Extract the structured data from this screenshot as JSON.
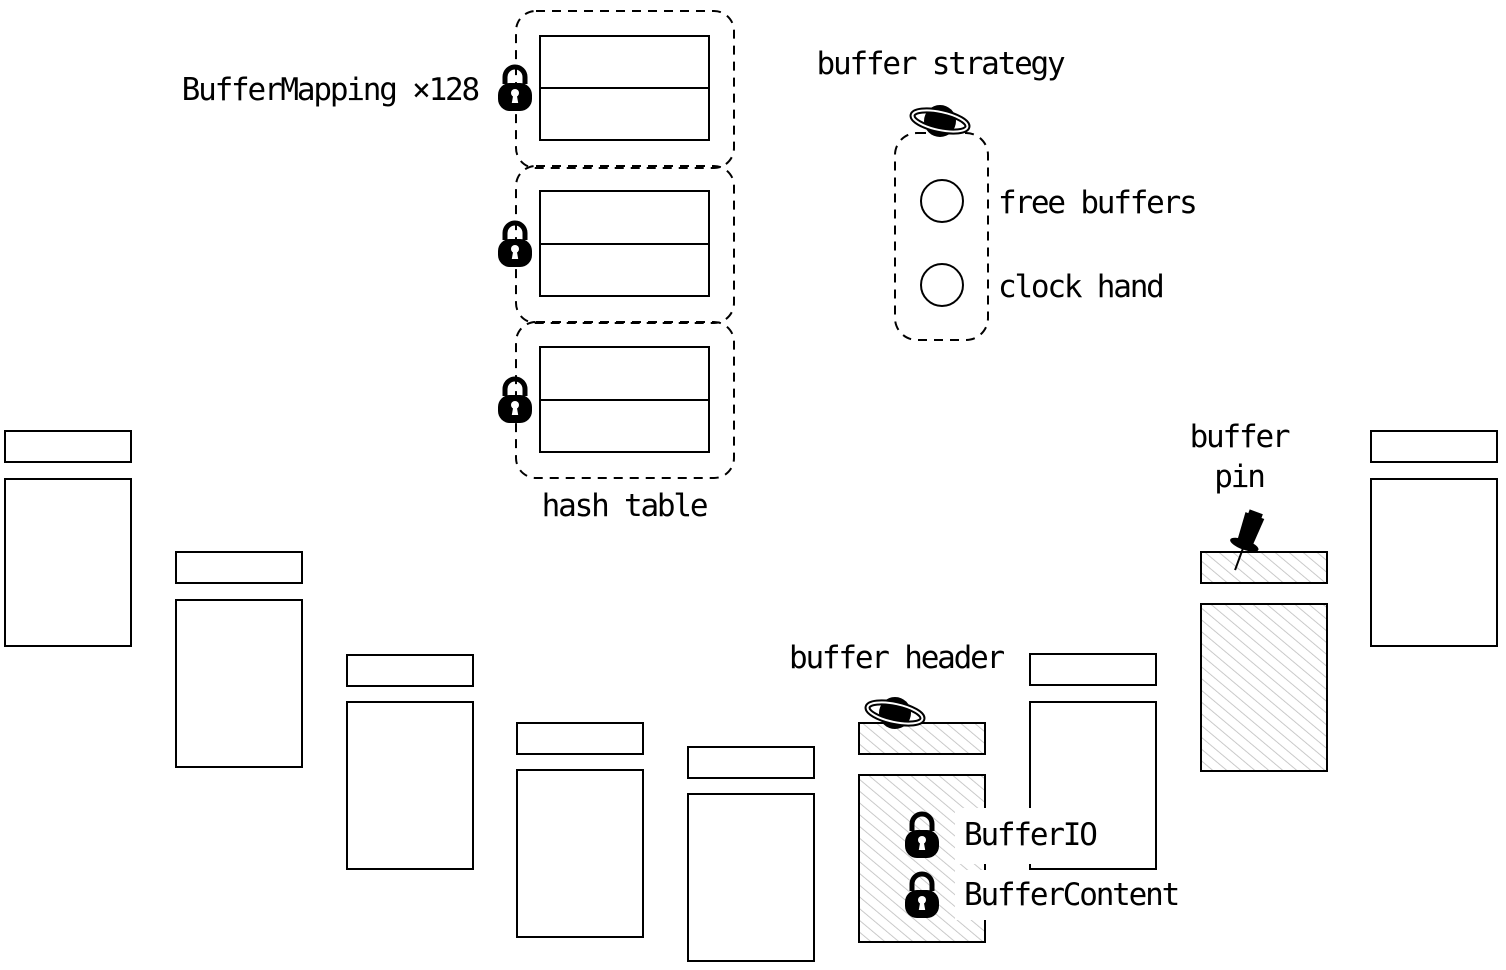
{
  "labels": {
    "buffer_mapping": "BufferMapping ×128",
    "hash_table": "hash table",
    "buffer_strategy": "buffer strategy",
    "free_buffers": "free buffers",
    "clock_hand": "clock hand",
    "buffer_pin_line1": "buffer",
    "buffer_pin_line2": "pin",
    "buffer_header": "buffer header",
    "buffer_io": "BufferIO",
    "buffer_content": "BufferContent"
  },
  "icons": {
    "lock": "lock-icon",
    "spinlock": "spinlock-icon",
    "pin": "pushpin-icon"
  },
  "colors": {
    "stroke": "#000000",
    "hatch": "#bdbdbd",
    "background": "#ffffff"
  }
}
